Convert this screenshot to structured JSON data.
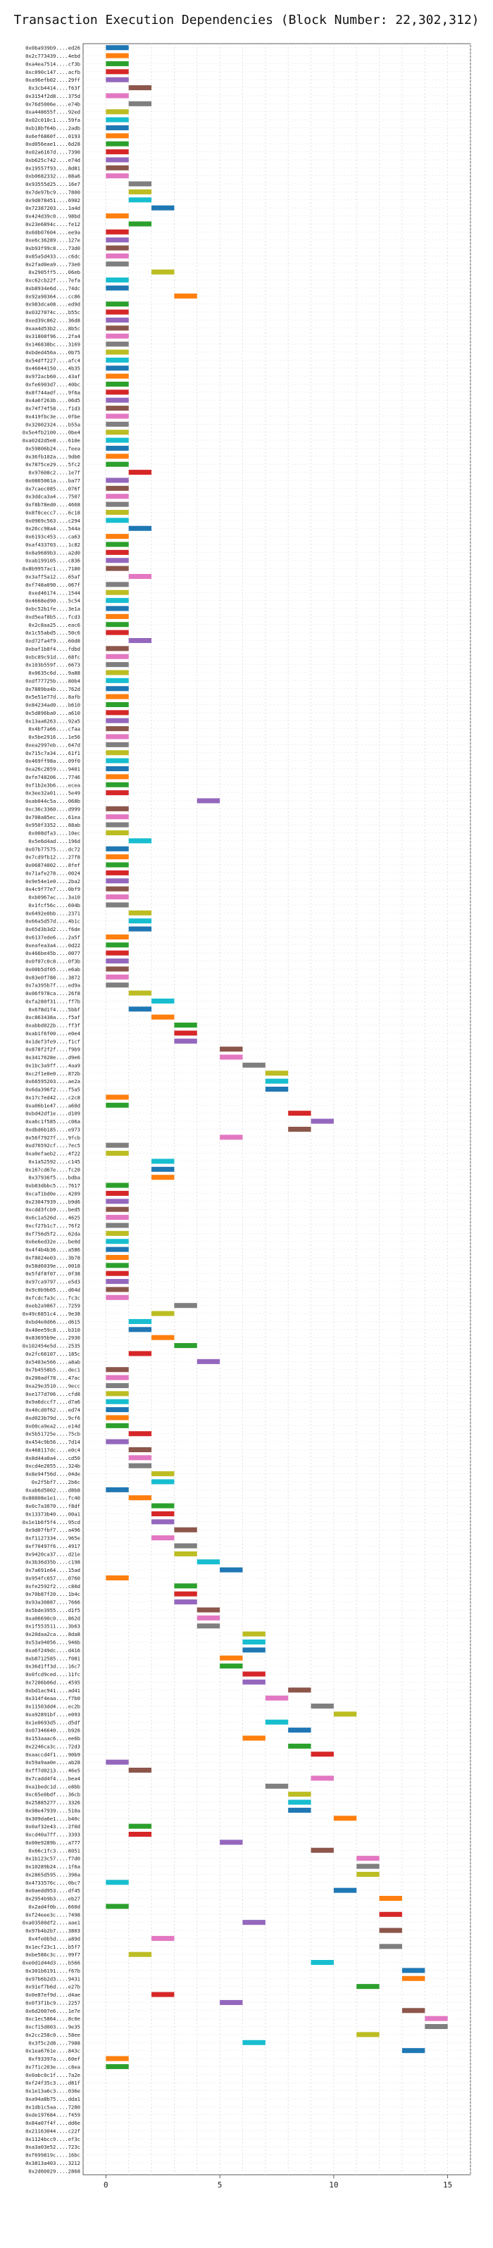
{
  "chart_data": {
    "type": "bar",
    "title": "Transaction Execution Dependencies (Block Number: 22,302,312)",
    "orientation": "horizontal",
    "xlabel": "",
    "ylabel": "",
    "xlim": [
      -1,
      16
    ],
    "x_ticks": [
      0,
      5,
      10,
      15
    ],
    "grid": true,
    "categories": [
      "0x0ba939b9....ed26",
      "0x2c773439....4ebd",
      "0xa4ea7514....cf3b",
      "0xc090c147....acfb",
      "0xa96efb02....29ff",
      "0x3cb4414....f63f",
      "0x3154f2d8....375d",
      "0x76d5006e....e74b",
      "0xa448655f....92ed",
      "0x02c010c1....59fa",
      "0xb18bf64b....2adb",
      "0x6ef6860f....0193",
      "0xd056eae1....6d28",
      "0x02a6167d....7390",
      "0xb625c742....e74d",
      "0x19557f93....8d81",
      "0xb0682332....88a6",
      "0x93555d25....16e7",
      "0x7de97bc9....7800",
      "0x9d078451....6902",
      "0x72387203....1a4d",
      "0x424d39c0....98bd",
      "0x23e6894c....fe12",
      "0x60b07604....ee9a",
      "0xe6c36289....127e",
      "0xb93f99c8....73d0",
      "0x85a5d433....c6dc",
      "0x2fad0ea9....73e0",
      "0x2905ff5....06eb",
      "0xc62cb22f....7efa",
      "0xb8934e6d....74dc",
      "0x92a90364....cc86",
      "0x983dca08....ed9d",
      "0x0327074c....b55c",
      "0xed39c862....36d8",
      "0xaa4d53b2....8b5c",
      "0x31808f96....2fa4",
      "0x146838bc....3169",
      "0xbded456a....0b75",
      "0x54dff227....afc4",
      "0x46044150....4b35",
      "0x972acb60....43af",
      "0xfe6903d7....40bc",
      "0x8f744adf....9f6a",
      "0x4a6f263b....06d5",
      "0x74f74f58....f1d3",
      "0x419fbc3e....0fbe",
      "0x32002324....b55a",
      "0x5e4fb2100....0be4",
      "0xa02d2d5e8....610e",
      "0x59806b24....feea",
      "0x36fb102a....9db6",
      "0x7875ce29....5fc2",
      "0x97608c2....1e7f",
      "0x0865061a....ba77",
      "0x7caec085....076f",
      "0x3ddca3a4....7507",
      "0xf8b78ed0....4668",
      "0x8f0cecc7....6c18",
      "0x0969c563....c294",
      "0x26cc98a4....544a",
      "0x6193c453....ca63",
      "0xaf433703....1c82",
      "0x8a9689b3....a2d0",
      "0xab199105....c836",
      "0x8b9957ac1....7180",
      "0x3aff5a12....65af",
      "0xf748a090....067f",
      "0xed46174....1544",
      "0x4668ed90....5c54",
      "0xbc52b1fe....3e1a",
      "0xd5eaf8b5....fcd3",
      "0x2c8aa25....eac6",
      "0x1c55abd5....50c6",
      "0xd72fa4f9....60d8",
      "0xbaf1b8f4....fdbd",
      "0xbc89c91d....68fc",
      "0x103b559f....6673",
      "0x0635c6d....9a88",
      "0xdf77725b....80b4",
      "0x7889ba4b....762d",
      "0x5e51e77d....8afb",
      "0x84234ad0....b610",
      "0x5d896ba0....a610",
      "0x13aa6263....92a5",
      "0x4bf7a66....cfaa",
      "0x5be2916....1e56",
      "0xea2997eb....647d",
      "0x715c7a34....61f1",
      "0x469ff98a....09f0",
      "0xa26c2859....9401",
      "0xfe748206....7746",
      "0xf1b2e3b6....ecea",
      "0x3ee32a01....5e49",
      "0xab044c5a....068b",
      "0xc36c3360....d999",
      "0x708a85ec....61ea",
      "0x950f3352....88ab",
      "0x008dfa3....10ec",
      "0x5e6d4ad....196d",
      "0x07b77575....dc72",
      "0x7cd9fb12....27f8",
      "0x06874002....8fef",
      "0x71afe278....0024",
      "0x9e54e1e0....2ba2",
      "0x4c9f77e7....0bf9",
      "0xb0967ac....3a10",
      "0x1fcf56c....604b",
      "0x6492e0bb....2371",
      "0x66a5d57d....4b1c",
      "0x65d3b3d2....f6de",
      "0x6137ede6....2a5f",
      "0xeafea3a4....0d22",
      "0x466be45b....0077",
      "0x0f07c0c8....0f3b",
      "0x00b5df05....e6ab",
      "0x83e0f788....3872",
      "0x7a395b7f....ed9a",
      "0x06f978ca....26f8",
      "0xfa280f31....ff7b",
      "0x678d1f4....5bbf",
      "0xc863438a....f5af",
      "0xabbd022b....ff3f",
      "0xab1f6f00....e0e4",
      "0x1def3fe9....f1cf",
      "0x878f2f2f....f9b9",
      "0x3417628e....d9e6",
      "0x1bc3a9ff....4aa9",
      "0xc2f1e0e0....872b",
      "0x66595203....ae2a",
      "0x6da396f2....f5a5",
      "0x17c7ed42....c2c8",
      "0xa06b1e47....a60d",
      "0xbd42df1e....d109",
      "0xa6c1f585....c06a",
      "0xdbd6b185....e973",
      "0x56f7927f....9fcb",
      "0xd76592cf....7ec5",
      "0xa0efaeb2....4f22",
      "0x1a52592....c145",
      "0x167cd67e....fc20",
      "0x37936f5....bdba",
      "0xb83dbbc5....7617",
      "0xcaf1bd0e....4209",
      "0x23047939....b9d6",
      "0xcdd3fcb9....bed5",
      "0x6c1a526d....4625",
      "0xcf27b1c7....76f2",
      "0xf756d5f2....62da",
      "0x6e6ed32e....be0d",
      "0x4f4b4b36....a586",
      "0xf8024e03....3b78",
      "0x58d6039e....0018",
      "0x5fdf8f07....0f38",
      "0x97ca9797....e5d3",
      "0x9c0b9b05....d64d",
      "0xfcdcfa3c....fc3c",
      "0xeb2a9867....7259",
      "0x49c6851c4....9e38",
      "0xbd4e0d66....d615",
      "0x40ee59c8....b310",
      "0x83695b9e....2930",
      "0x102454e5d....2535",
      "0x2fc66107....185c",
      "0x5403e566....a8ab",
      "0x7b4558b5....dec1",
      "0x200adf78....47ac",
      "0xa29e3510....9ecc",
      "0xe177d706....cfd8",
      "0x9a6dccf7....d7a6",
      "0x40cd0f62....ed74",
      "0xd023b79d....9cf6",
      "0x00ca9ea2....e14d",
      "0x5b51725e....75cb",
      "0x454c9b56....7d14",
      "0x468117dc....e0c4",
      "0x8d44a0a4....cd50",
      "0xcd4e2055....324b",
      "0x8e94f56d....04de",
      "0x2f5bf7....2b6c",
      "0xab6d5002....d8b8",
      "0x88808e1e1....fc40",
      "0x0c7a3070....f8df",
      "0x13373b40....00a1",
      "0x1e1b6f5f4....95cd",
      "0x9d07fbf7....a496",
      "0xf1127334....965e",
      "0xf70497f6....4917",
      "0x9420ca37....d21e",
      "0x3b36d35b....c198",
      "0x7a691e64....15ad",
      "0x954fc657....0760",
      "0xfe2592f2....c80d",
      "0x70b87f20....1b4c",
      "0x93a30887....7666",
      "0x5bde3955....d1f5",
      "0xa06690c0....862d",
      "0x1f553511....3b63",
      "0x20daa2ca....8da8",
      "0x53a94056....946b",
      "0xa6f249dc....d416",
      "0xb8712585....f081",
      "0x36d1ff3d....16c7",
      "0x0fcd9ced....11fc",
      "0x7206b06d....4595",
      "0xbd1ac941....ad41",
      "0x314f4eaa....f7b0",
      "0x11503dd4....ec2b",
      "0xa92891bf....e093",
      "0x1e0693d5....d5df",
      "0x07346640....b926",
      "0x153aaac6....ee6b",
      "0x2246ca3c....72d3",
      "0xaaccd4f1....90b9",
      "0x59a9aa0e....ab28",
      "0xff7d0213....46e5",
      "0x7cadd4f4....bea4",
      "0xa1bedc1d....e8bb",
      "0xc65e0bdf....36cb",
      "0x25885277....3326",
      "0x98e47939....510a",
      "0x309da6e1....b40c",
      "0x0af32e43....2f0d",
      "0xcd40a7ff....3393",
      "0x00e9289b....a777",
      "0x66c1fc3....8051",
      "0x1b123c57....f7d0",
      "0x10289b24....1f6a",
      "0x2865d595....396a",
      "0x4733576c....0bc7",
      "0x0aedd953....df45",
      "0x2954b9b3....eb27",
      "0x2ad4f0b....660d",
      "0xf24eee3c....7498",
      "0xa03580df2....aae1",
      "0x97b4b2b7....3803",
      "0x4fe0b5d....a89d",
      "0x1ecf23c1....b5f7",
      "0xbe586c3c....99f7",
      "0xe0d1d44d3....b566",
      "0x301b6191....f67b",
      "0x97b6b2d3....9431",
      "0x91ef7b6d....e27b",
      "0x0e87ef9d....d4ae",
      "0x0f3f1bc9....2257",
      "0x6d2007e6....1e7e",
      "0xc1ec5864....8c0e",
      "0xcf15d003....9e35",
      "0x2cc258c0....58ee",
      "0x3f5c2d8....7988",
      "0x1ea6761e....843c",
      "0xf93397a....60ef",
      "0x7f1c203e....c8ea",
      "0x0abc0c1f....7a2e",
      "0xf24f35c3....d81f",
      "0x1e13a6c3....036e",
      "0xa94a8b75....dda1",
      "0x1db1c5aa....7280",
      "0xde197684....f459",
      "0x84a07f4f....dd6e",
      "0x21163044....c22f",
      "0x1124bcc9....ef3c",
      "0xa3a03e52....723c",
      "0xf699819c....16bc",
      "0x3813a403....3212",
      "0x2d60029....2868"
    ],
    "series": [
      {
        "starts": [
          0,
          0,
          0,
          0,
          0,
          1,
          0,
          1,
          0,
          0,
          0,
          0,
          0,
          0,
          0,
          0,
          0,
          1,
          1,
          1,
          2,
          0,
          1,
          0,
          0,
          0,
          0,
          0,
          2,
          0,
          0,
          3,
          0,
          0,
          0,
          0,
          0,
          0,
          0,
          0,
          0,
          0,
          0,
          0,
          0,
          0,
          0,
          0,
          0,
          0,
          0,
          0,
          0,
          1,
          0,
          0,
          0,
          0,
          0,
          0,
          1,
          0,
          0,
          0,
          0,
          0,
          1,
          0,
          0,
          0,
          0,
          0,
          0,
          0,
          1,
          0,
          0,
          0,
          0,
          0,
          0,
          0,
          0,
          0,
          0,
          0,
          0,
          0,
          0,
          0,
          0,
          0,
          0,
          0,
          4,
          0,
          0,
          0,
          0,
          1,
          0,
          0,
          0,
          0,
          0,
          0,
          0,
          0,
          1,
          1,
          1,
          0,
          0,
          0,
          0,
          0,
          0,
          0,
          1,
          2,
          1,
          2,
          3,
          3,
          3,
          5,
          5,
          6,
          7,
          7,
          7,
          0,
          0,
          8,
          9,
          8,
          5,
          0,
          0,
          2,
          2,
          2,
          0,
          0,
          0,
          0,
          0,
          0,
          0,
          0,
          0,
          0,
          0,
          0,
          0,
          0,
          0,
          3,
          2,
          1,
          1,
          2,
          3,
          1,
          4,
          0,
          0,
          0,
          0,
          0,
          0,
          0,
          0,
          1,
          0,
          1,
          1,
          1,
          2,
          2,
          0,
          1,
          2,
          2,
          2,
          3,
          2,
          3,
          3,
          4,
          5,
          0,
          3,
          3,
          3,
          4,
          4,
          4,
          6,
          6,
          6,
          5,
          5,
          6,
          6,
          8,
          7,
          9,
          10,
          7,
          8,
          6,
          8,
          9,
          0,
          1,
          9,
          7,
          8,
          8,
          8,
          10,
          1,
          1,
          5,
          9,
          11,
          11,
          11,
          0,
          10,
          12,
          0,
          12,
          6,
          12,
          2,
          12,
          1,
          9,
          13,
          13,
          11,
          2,
          5,
          13,
          14,
          14,
          11,
          6,
          13,
          0,
          0
        ],
        "durations": [
          1,
          1,
          1,
          1,
          1,
          1,
          1,
          1,
          1,
          1,
          1,
          1,
          1,
          1,
          1,
          1,
          1,
          1,
          1,
          1,
          1,
          1,
          1,
          1,
          1,
          1,
          1,
          1,
          1,
          1,
          1,
          1,
          1,
          1,
          1,
          1,
          1,
          1,
          1,
          1,
          1,
          1,
          1,
          1,
          1,
          1,
          1,
          1,
          1,
          1,
          1,
          1,
          1,
          1,
          1,
          1,
          1,
          1,
          1,
          1,
          1,
          1,
          1,
          1,
          1,
          1,
          1,
          1,
          1,
          1,
          1,
          1,
          1,
          1,
          1,
          1,
          1,
          1,
          1,
          1,
          1,
          1,
          1,
          1,
          1,
          1,
          1,
          1,
          1,
          1,
          1,
          1,
          1,
          1,
          1,
          1,
          1,
          1,
          1,
          1,
          1,
          1,
          1,
          1,
          1,
          1,
          1,
          1,
          1,
          1,
          1,
          1,
          1,
          1,
          1,
          1,
          1,
          1,
          1,
          1,
          1,
          1,
          1,
          1,
          1,
          1,
          1,
          1,
          1,
          1,
          1,
          1,
          1,
          1,
          1,
          1,
          1,
          1,
          1,
          1,
          1,
          1,
          1,
          1,
          1,
          1,
          1,
          1,
          1,
          1,
          1,
          1,
          1,
          1,
          1,
          1,
          1,
          1,
          1,
          1,
          1,
          1,
          1,
          1,
          1,
          1,
          1,
          1,
          1,
          1,
          1,
          1,
          1,
          1,
          1,
          1,
          1,
          1,
          1,
          1,
          1,
          1,
          1,
          1,
          1,
          1,
          1,
          1,
          1,
          1,
          1,
          1,
          1,
          1,
          1,
          1,
          1,
          1,
          1,
          1,
          1,
          1,
          1,
          1,
          1,
          1,
          1,
          1,
          1,
          1,
          1,
          1,
          1,
          1,
          1,
          1,
          1,
          1,
          1,
          1,
          1,
          1,
          1,
          1,
          1,
          1,
          1,
          1,
          1,
          1,
          1,
          1,
          1,
          1,
          1,
          1,
          1,
          1,
          1,
          1,
          1,
          1,
          1,
          1,
          1,
          1,
          1,
          1,
          1,
          1,
          1,
          1,
          1
        ]
      }
    ],
    "colors": [
      "#1f77b4",
      "#ff7f0e",
      "#2ca02c",
      "#d62728",
      "#9467bd",
      "#8c564b",
      "#e377c2",
      "#7f7f7f",
      "#bcbd22",
      "#17becf"
    ]
  }
}
